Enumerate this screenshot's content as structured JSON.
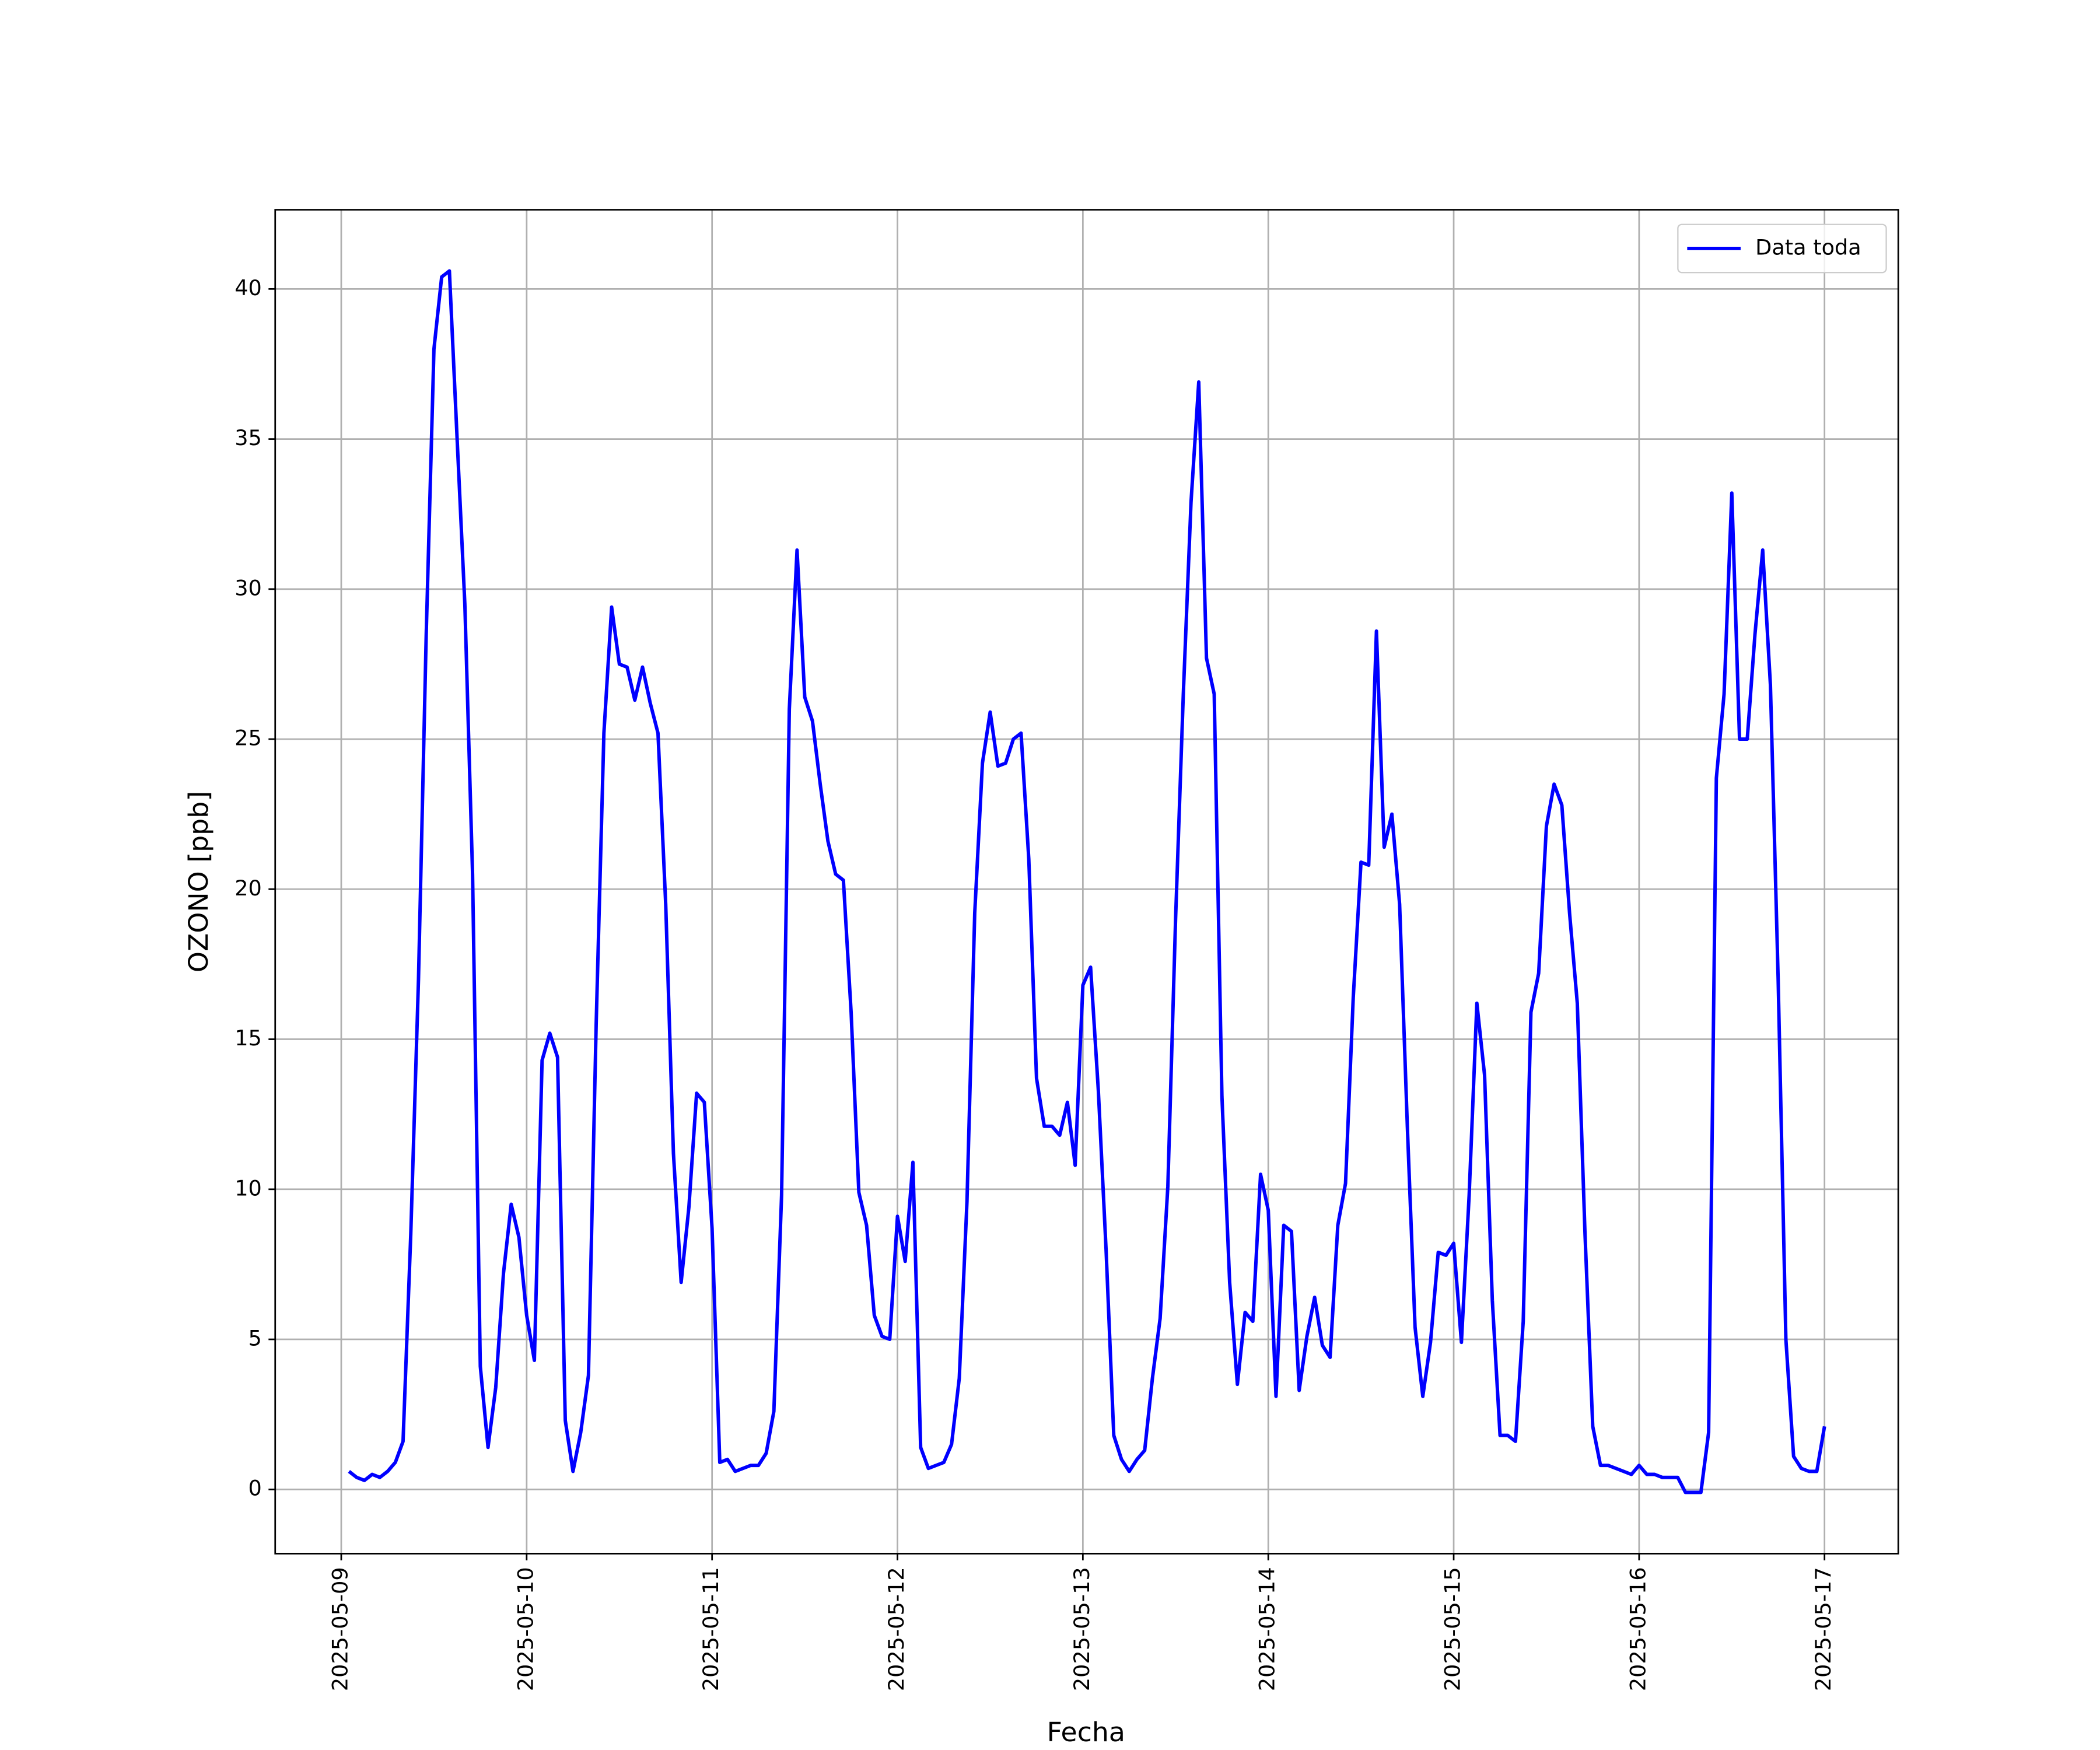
{
  "chart_data": {
    "type": "line",
    "x_label": "Fecha",
    "y_label": "OZONO [ppb]",
    "x": [
      "2025-05-09T01:00",
      "2025-05-09T02:00",
      "2025-05-09T03:00",
      "2025-05-09T04:00",
      "2025-05-09T05:00",
      "2025-05-09T06:00",
      "2025-05-09T07:00",
      "2025-05-09T08:00",
      "2025-05-09T09:00",
      "2025-05-09T10:00",
      "2025-05-09T11:00",
      "2025-05-09T12:00",
      "2025-05-09T13:00",
      "2025-05-09T14:00",
      "2025-05-09T15:00",
      "2025-05-09T16:00",
      "2025-05-09T17:00",
      "2025-05-09T18:00",
      "2025-05-09T19:00",
      "2025-05-09T20:00",
      "2025-05-09T21:00",
      "2025-05-09T22:00",
      "2025-05-09T23:00",
      "2025-05-10T00:00",
      "2025-05-10T01:00",
      "2025-05-10T02:00",
      "2025-05-10T03:00",
      "2025-05-10T04:00",
      "2025-05-10T05:00",
      "2025-05-10T06:00",
      "2025-05-10T07:00",
      "2025-05-10T08:00",
      "2025-05-10T09:00",
      "2025-05-10T10:00",
      "2025-05-10T11:00",
      "2025-05-10T12:00",
      "2025-05-10T13:00",
      "2025-05-10T14:00",
      "2025-05-10T15:00",
      "2025-05-10T16:00",
      "2025-05-10T17:00",
      "2025-05-10T18:00",
      "2025-05-10T19:00",
      "2025-05-10T20:00",
      "2025-05-10T21:00",
      "2025-05-10T22:00",
      "2025-05-10T23:00",
      "2025-05-11T00:00",
      "2025-05-11T01:00",
      "2025-05-11T02:00",
      "2025-05-11T03:00",
      "2025-05-11T04:00",
      "2025-05-11T05:00",
      "2025-05-11T06:00",
      "2025-05-11T07:00",
      "2025-05-11T08:00",
      "2025-05-11T09:00",
      "2025-05-11T10:00",
      "2025-05-11T11:00",
      "2025-05-11T12:00",
      "2025-05-11T13:00",
      "2025-05-11T14:00",
      "2025-05-11T15:00",
      "2025-05-11T16:00",
      "2025-05-11T17:00",
      "2025-05-11T18:00",
      "2025-05-11T19:00",
      "2025-05-11T20:00",
      "2025-05-11T21:00",
      "2025-05-11T22:00",
      "2025-05-11T23:00",
      "2025-05-12T00:00",
      "2025-05-12T01:00",
      "2025-05-12T02:00",
      "2025-05-12T03:00",
      "2025-05-12T04:00",
      "2025-05-12T05:00",
      "2025-05-12T06:00",
      "2025-05-12T07:00",
      "2025-05-12T08:00",
      "2025-05-12T09:00",
      "2025-05-12T10:00",
      "2025-05-12T11:00",
      "2025-05-12T12:00",
      "2025-05-12T13:00",
      "2025-05-12T14:00",
      "2025-05-12T15:00",
      "2025-05-12T16:00",
      "2025-05-12T17:00",
      "2025-05-12T18:00",
      "2025-05-12T19:00",
      "2025-05-12T20:00",
      "2025-05-12T21:00",
      "2025-05-12T22:00",
      "2025-05-12T23:00",
      "2025-05-13T00:00",
      "2025-05-13T01:00",
      "2025-05-13T02:00",
      "2025-05-13T03:00",
      "2025-05-13T04:00",
      "2025-05-13T05:00",
      "2025-05-13T06:00",
      "2025-05-13T07:00",
      "2025-05-13T08:00",
      "2025-05-13T09:00",
      "2025-05-13T10:00",
      "2025-05-13T11:00",
      "2025-05-13T12:00",
      "2025-05-13T13:00",
      "2025-05-13T14:00",
      "2025-05-13T15:00",
      "2025-05-13T16:00",
      "2025-05-13T17:00",
      "2025-05-13T18:00",
      "2025-05-13T19:00",
      "2025-05-13T20:00",
      "2025-05-13T21:00",
      "2025-05-13T22:00",
      "2025-05-13T23:00",
      "2025-05-14T00:00",
      "2025-05-14T01:00",
      "2025-05-14T02:00",
      "2025-05-14T03:00",
      "2025-05-14T04:00",
      "2025-05-14T05:00",
      "2025-05-14T06:00",
      "2025-05-14T07:00",
      "2025-05-14T08:00",
      "2025-05-14T09:00",
      "2025-05-14T10:00",
      "2025-05-14T11:00",
      "2025-05-14T12:00",
      "2025-05-14T13:00",
      "2025-05-14T14:00",
      "2025-05-14T15:00",
      "2025-05-14T16:00",
      "2025-05-14T17:00",
      "2025-05-14T18:00",
      "2025-05-14T19:00",
      "2025-05-14T20:00",
      "2025-05-14T21:00",
      "2025-05-14T22:00",
      "2025-05-14T23:00",
      "2025-05-15T00:00",
      "2025-05-15T01:00",
      "2025-05-15T02:00",
      "2025-05-15T03:00",
      "2025-05-15T04:00",
      "2025-05-15T05:00",
      "2025-05-15T06:00",
      "2025-05-15T07:00",
      "2025-05-15T08:00",
      "2025-05-15T09:00",
      "2025-05-15T10:00",
      "2025-05-15T11:00",
      "2025-05-15T12:00",
      "2025-05-15T13:00",
      "2025-05-15T14:00",
      "2025-05-15T15:00",
      "2025-05-15T16:00",
      "2025-05-15T17:00",
      "2025-05-15T18:00",
      "2025-05-15T19:00",
      "2025-05-15T20:00",
      "2025-05-15T21:00",
      "2025-05-15T22:00",
      "2025-05-15T23:00",
      "2025-05-16T00:00",
      "2025-05-16T01:00",
      "2025-05-16T02:00",
      "2025-05-16T03:00",
      "2025-05-16T04:00",
      "2025-05-16T05:00",
      "2025-05-16T06:00",
      "2025-05-16T07:00",
      "2025-05-16T08:00",
      "2025-05-16T09:00",
      "2025-05-16T10:00",
      "2025-05-16T11:00",
      "2025-05-16T12:00",
      "2025-05-16T13:00",
      "2025-05-16T14:00",
      "2025-05-16T15:00",
      "2025-05-16T16:00",
      "2025-05-16T17:00",
      "2025-05-16T18:00",
      "2025-05-16T19:00",
      "2025-05-16T20:00",
      "2025-05-16T21:00",
      "2025-05-16T22:00",
      "2025-05-16T23:00",
      "2025-05-17T00:00"
    ],
    "series": [
      {
        "name": "Data toda",
        "color": "#0000ff",
        "values": [
          0.6,
          0.4,
          0.3,
          0.5,
          0.4,
          0.6,
          0.9,
          1.6,
          8.5,
          17,
          28.5,
          38,
          40.4,
          40.6,
          35,
          29.5,
          20.5,
          4.1,
          1.4,
          3.4,
          7.2,
          9.5,
          8.4,
          5.8,
          4.3,
          14.3,
          15.2,
          14.4,
          2.3,
          0.6,
          1.9,
          3.8,
          15.5,
          25.2,
          29.4,
          27.5,
          27.4,
          26.3,
          27.4,
          26.2,
          25.2,
          19.5,
          11.2,
          6.9,
          9.4,
          13.2,
          12.9,
          8.7,
          0.9,
          1.0,
          0.6,
          0.7,
          0.8,
          0.8,
          1.2,
          2.6,
          9.8,
          26,
          31.3,
          26.4,
          25.6,
          23.5,
          21.6,
          20.5,
          20.3,
          15.9,
          9.9,
          8.8,
          5.8,
          5.1,
          5.0,
          9.1,
          7.6,
          10.9,
          1.4,
          0.7,
          0.8,
          0.9,
          1.5,
          3.7,
          9.6,
          19.2,
          24.2,
          25.9,
          24.1,
          24.2,
          25.0,
          25.2,
          21,
          13.7,
          12.1,
          12.1,
          11.8,
          12.9,
          10.8,
          16.8,
          17.4,
          13.3,
          8,
          1.8,
          1.0,
          0.6,
          1.0,
          1.3,
          3.7,
          5.7,
          10.1,
          19,
          26.5,
          32.9,
          36.9,
          27.7,
          26.5,
          13.1,
          6.9,
          3.5,
          5.9,
          5.6,
          10.5,
          9.3,
          3.1,
          8.8,
          8.6,
          3.3,
          5.1,
          6.4,
          4.8,
          4.4,
          8.8,
          10.2,
          16.4,
          20.9,
          20.8,
          28.6,
          21.4,
          22.5,
          19.5,
          12.1,
          5.4,
          3.1,
          4.9,
          7.9,
          7.8,
          8.2,
          4.9,
          9.8,
          16.2,
          13.8,
          6.3,
          1.8,
          1.8,
          1.6,
          5.6,
          15.9,
          17.2,
          22.1,
          23.5,
          22.8,
          19.2,
          16.2,
          8.5,
          2.1,
          0.8,
          0.8,
          0.7,
          0.6,
          0.5,
          0.8,
          0.5,
          0.5,
          0.4,
          0.4,
          0.4,
          -0.1,
          -0.1,
          -0.1,
          1.9,
          23.7,
          26.5,
          33.2,
          25,
          25,
          28.5,
          31.3,
          26.8,
          17,
          5,
          1.1,
          0.7,
          0.6,
          0.6,
          2.1
        ]
      }
    ],
    "xlim": [
      "2025-05-08T15:27",
      "2025-05-17T09:33"
    ],
    "xticks": [
      "2025-05-09",
      "2025-05-10",
      "2025-05-11",
      "2025-05-12",
      "2025-05-13",
      "2025-05-14",
      "2025-05-15",
      "2025-05-16",
      "2025-05-17"
    ],
    "ylim": [
      -2.14,
      42.64
    ],
    "yticks": [
      0,
      5,
      10,
      15,
      20,
      25,
      30,
      35,
      40
    ],
    "grid": true,
    "legend": "upper right"
  }
}
